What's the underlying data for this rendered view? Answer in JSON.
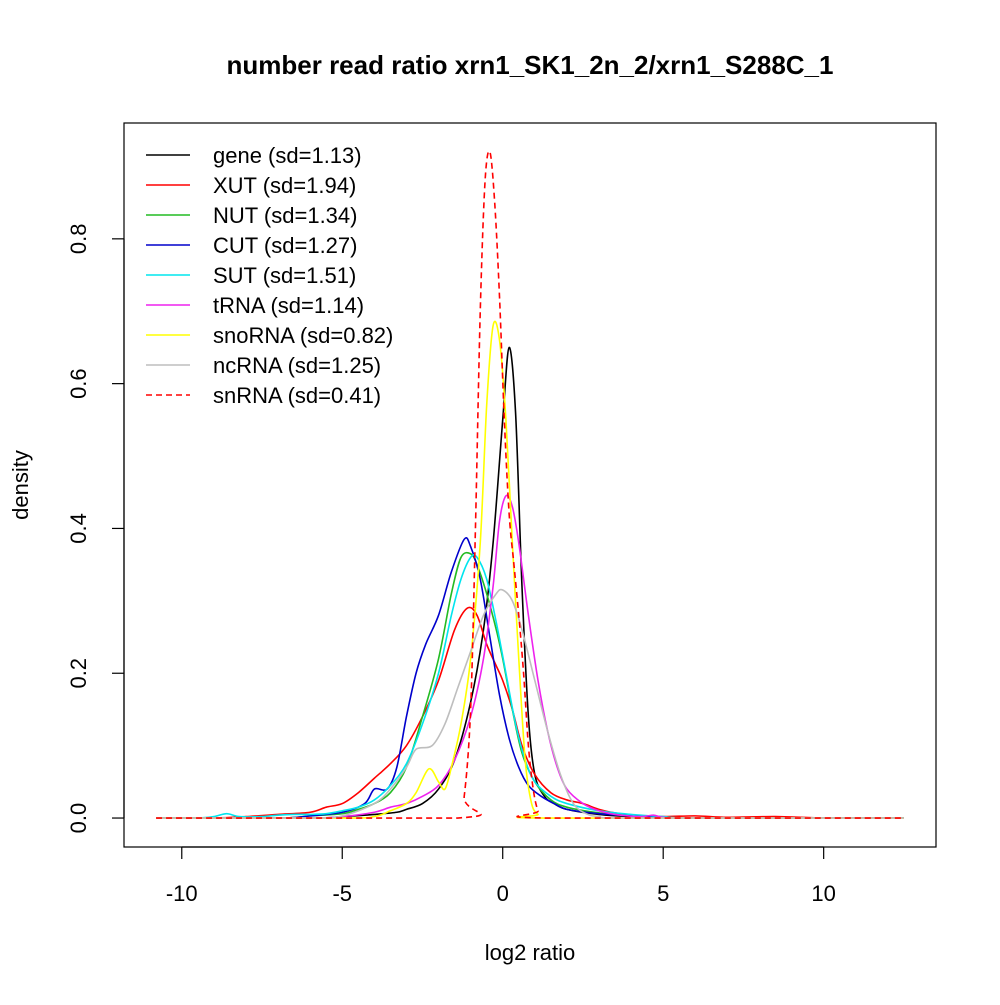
{
  "chart_data": {
    "type": "line",
    "title": "number read ratio xrn1_SK1_2n_2/xrn1_S288C_1",
    "xlabel": "log2 ratio",
    "ylabel": "density",
    "xlim": [
      -11.8,
      13.5
    ],
    "ylim": [
      -0.04,
      0.96
    ],
    "xticks": [
      -10,
      -5,
      0,
      5,
      10
    ],
    "yticks": [
      0.0,
      0.2,
      0.4,
      0.6,
      0.8
    ],
    "xtick_labels": [
      "-10",
      "-5",
      "0",
      "5",
      "10"
    ],
    "ytick_labels": [
      "0.0",
      "0.2",
      "0.4",
      "0.6",
      "0.8"
    ],
    "grid": false,
    "legend_position": "top-left",
    "series": [
      {
        "name": "gene (sd=1.13)",
        "color": "#000000",
        "dash": false,
        "points": [
          [
            -10.8,
            0.0
          ],
          [
            -6,
            0.0
          ],
          [
            -5,
            0.002
          ],
          [
            -4,
            0.005
          ],
          [
            -3.3,
            0.008
          ],
          [
            -3,
            0.012
          ],
          [
            -2.5,
            0.02
          ],
          [
            -2,
            0.04
          ],
          [
            -1.5,
            0.08
          ],
          [
            -1,
            0.16
          ],
          [
            -0.6,
            0.26
          ],
          [
            -0.3,
            0.38
          ],
          [
            0,
            0.55
          ],
          [
            0.2,
            0.65
          ],
          [
            0.4,
            0.56
          ],
          [
            0.6,
            0.32
          ],
          [
            0.8,
            0.14
          ],
          [
            1,
            0.06
          ],
          [
            1.3,
            0.03
          ],
          [
            1.6,
            0.02
          ],
          [
            2,
            0.012
          ],
          [
            3,
            0.005
          ],
          [
            4,
            0.002
          ],
          [
            5,
            0.001
          ],
          [
            6,
            0.0
          ],
          [
            12.5,
            0.0
          ]
        ]
      },
      {
        "name": "XUT (sd=1.94)",
        "color": "#ff0000",
        "dash": false,
        "points": [
          [
            -10.8,
            0.0
          ],
          [
            -9,
            0.0
          ],
          [
            -8,
            0.002
          ],
          [
            -7,
            0.005
          ],
          [
            -6,
            0.008
          ],
          [
            -5.5,
            0.015
          ],
          [
            -5,
            0.02
          ],
          [
            -4.5,
            0.035
          ],
          [
            -4,
            0.055
          ],
          [
            -3.5,
            0.075
          ],
          [
            -3,
            0.1
          ],
          [
            -2.5,
            0.14
          ],
          [
            -2,
            0.19
          ],
          [
            -1.5,
            0.26
          ],
          [
            -1.1,
            0.29
          ],
          [
            -0.8,
            0.28
          ],
          [
            -0.5,
            0.24
          ],
          [
            -0.2,
            0.21
          ],
          [
            0,
            0.19
          ],
          [
            0.3,
            0.15
          ],
          [
            0.6,
            0.1
          ],
          [
            1,
            0.06
          ],
          [
            1.5,
            0.035
          ],
          [
            2,
            0.025
          ],
          [
            2.5,
            0.02
          ],
          [
            3,
            0.012
          ],
          [
            3.5,
            0.007
          ],
          [
            4,
            0.004
          ],
          [
            5,
            0.002
          ],
          [
            6,
            0.003
          ],
          [
            7,
            0.001
          ],
          [
            8.5,
            0.002
          ],
          [
            10,
            0.0
          ],
          [
            12.5,
            0.0
          ]
        ]
      },
      {
        "name": "NUT (sd=1.34)",
        "color": "#22bb22",
        "dash": false,
        "points": [
          [
            -10.8,
            0.0
          ],
          [
            -7,
            0.0
          ],
          [
            -6,
            0.003
          ],
          [
            -5,
            0.006
          ],
          [
            -4.5,
            0.012
          ],
          [
            -4,
            0.02
          ],
          [
            -3.5,
            0.035
          ],
          [
            -3,
            0.07
          ],
          [
            -2.5,
            0.14
          ],
          [
            -2,
            0.22
          ],
          [
            -1.6,
            0.31
          ],
          [
            -1.3,
            0.36
          ],
          [
            -1,
            0.365
          ],
          [
            -0.8,
            0.35
          ],
          [
            -0.5,
            0.31
          ],
          [
            -0.2,
            0.26
          ],
          [
            0,
            0.22
          ],
          [
            0.3,
            0.15
          ],
          [
            0.6,
            0.09
          ],
          [
            1,
            0.05
          ],
          [
            1.5,
            0.025
          ],
          [
            2,
            0.015
          ],
          [
            3,
            0.007
          ],
          [
            4,
            0.003
          ],
          [
            5,
            0.001
          ],
          [
            6,
            0.0
          ],
          [
            12.5,
            0.0
          ]
        ]
      },
      {
        "name": "CUT (sd=1.27)",
        "color": "#0000cc",
        "dash": false,
        "points": [
          [
            -10.8,
            0.0
          ],
          [
            -7,
            0.0
          ],
          [
            -6,
            0.003
          ],
          [
            -5,
            0.008
          ],
          [
            -4.3,
            0.02
          ],
          [
            -4,
            0.04
          ],
          [
            -3.6,
            0.04
          ],
          [
            -3.3,
            0.07
          ],
          [
            -3,
            0.14
          ],
          [
            -2.7,
            0.2
          ],
          [
            -2.4,
            0.24
          ],
          [
            -2,
            0.28
          ],
          [
            -1.6,
            0.34
          ],
          [
            -1.2,
            0.385
          ],
          [
            -1,
            0.375
          ],
          [
            -0.7,
            0.33
          ],
          [
            -0.4,
            0.25
          ],
          [
            -0.1,
            0.17
          ],
          [
            0.2,
            0.11
          ],
          [
            0.5,
            0.07
          ],
          [
            0.8,
            0.045
          ],
          [
            1.2,
            0.03
          ],
          [
            1.6,
            0.02
          ],
          [
            2,
            0.012
          ],
          [
            3,
            0.006
          ],
          [
            4,
            0.003
          ],
          [
            5,
            0.001
          ],
          [
            6,
            0.0
          ],
          [
            12.5,
            0.0
          ]
        ]
      },
      {
        "name": "SUT (sd=1.51)",
        "color": "#00e5ee",
        "dash": false,
        "points": [
          [
            -10.8,
            0.0
          ],
          [
            -9.5,
            0.0
          ],
          [
            -9,
            0.002
          ],
          [
            -8.6,
            0.006
          ],
          [
            -8.2,
            0.002
          ],
          [
            -7.5,
            0.002
          ],
          [
            -7,
            0.004
          ],
          [
            -6.5,
            0.005
          ],
          [
            -6,
            0.005
          ],
          [
            -5.5,
            0.006
          ],
          [
            -5,
            0.01
          ],
          [
            -4.5,
            0.015
          ],
          [
            -4,
            0.025
          ],
          [
            -3.5,
            0.045
          ],
          [
            -3,
            0.075
          ],
          [
            -2.5,
            0.13
          ],
          [
            -2,
            0.2
          ],
          [
            -1.6,
            0.28
          ],
          [
            -1.3,
            0.33
          ],
          [
            -1,
            0.36
          ],
          [
            -0.8,
            0.36
          ],
          [
            -0.5,
            0.33
          ],
          [
            -0.2,
            0.27
          ],
          [
            0.1,
            0.2
          ],
          [
            0.4,
            0.13
          ],
          [
            0.7,
            0.08
          ],
          [
            1,
            0.05
          ],
          [
            1.5,
            0.03
          ],
          [
            2,
            0.02
          ],
          [
            3,
            0.01
          ],
          [
            4,
            0.005
          ],
          [
            5,
            0.002
          ],
          [
            6,
            0.0
          ],
          [
            12.5,
            0.0
          ]
        ]
      },
      {
        "name": "tRNA (sd=1.14)",
        "color": "#ee22ee",
        "dash": false,
        "points": [
          [
            -10.8,
            0.0
          ],
          [
            -6,
            0.0
          ],
          [
            -5,
            0.002
          ],
          [
            -4,
            0.008
          ],
          [
            -3.5,
            0.015
          ],
          [
            -3,
            0.02
          ],
          [
            -2.5,
            0.03
          ],
          [
            -2,
            0.045
          ],
          [
            -1.5,
            0.08
          ],
          [
            -1,
            0.14
          ],
          [
            -0.6,
            0.22
          ],
          [
            -0.3,
            0.32
          ],
          [
            -0.1,
            0.41
          ],
          [
            0.1,
            0.445
          ],
          [
            0.3,
            0.43
          ],
          [
            0.5,
            0.38
          ],
          [
            0.8,
            0.28
          ],
          [
            1.1,
            0.19
          ],
          [
            1.4,
            0.12
          ],
          [
            1.7,
            0.07
          ],
          [
            2,
            0.04
          ],
          [
            2.5,
            0.02
          ],
          [
            3,
            0.01
          ],
          [
            3.5,
            0.005
          ],
          [
            4.3,
            0.002
          ],
          [
            4.7,
            0.004
          ],
          [
            5,
            0.001
          ],
          [
            6,
            0.0
          ],
          [
            12.5,
            0.0
          ]
        ]
      },
      {
        "name": "snoRNA (sd=0.82)",
        "color": "#ffff00",
        "dash": false,
        "points": [
          [
            -10.8,
            0.0
          ],
          [
            -5,
            0.0
          ],
          [
            -4,
            0.002
          ],
          [
            -3.5,
            0.01
          ],
          [
            -3,
            0.02
          ],
          [
            -2.7,
            0.035
          ],
          [
            -2.3,
            0.068
          ],
          [
            -2,
            0.05
          ],
          [
            -1.8,
            0.04
          ],
          [
            -1.6,
            0.07
          ],
          [
            -1.3,
            0.13
          ],
          [
            -1,
            0.22
          ],
          [
            -0.7,
            0.38
          ],
          [
            -0.5,
            0.57
          ],
          [
            -0.3,
            0.68
          ],
          [
            -0.1,
            0.66
          ],
          [
            0.1,
            0.55
          ],
          [
            0.3,
            0.38
          ],
          [
            0.5,
            0.22
          ],
          [
            0.7,
            0.08
          ],
          [
            0.9,
            0.02
          ],
          [
            1.1,
            0.005
          ],
          [
            1.3,
            0.0
          ],
          [
            12.5,
            0.0
          ]
        ]
      },
      {
        "name": "ncRNA (sd=1.25)",
        "color": "#bebebe",
        "dash": false,
        "points": [
          [
            -10.8,
            0.0
          ],
          [
            -6,
            0.0
          ],
          [
            -5,
            0.003
          ],
          [
            -4,
            0.02
          ],
          [
            -3.5,
            0.04
          ],
          [
            -3,
            0.07
          ],
          [
            -2.7,
            0.095
          ],
          [
            -2.2,
            0.1
          ],
          [
            -1.8,
            0.13
          ],
          [
            -1.4,
            0.18
          ],
          [
            -1,
            0.23
          ],
          [
            -0.6,
            0.28
          ],
          [
            -0.2,
            0.31
          ],
          [
            0,
            0.315
          ],
          [
            0.3,
            0.3
          ],
          [
            0.6,
            0.26
          ],
          [
            1,
            0.19
          ],
          [
            1.4,
            0.12
          ],
          [
            1.8,
            0.06
          ],
          [
            2.2,
            0.02
          ],
          [
            2.6,
            0.006
          ],
          [
            3,
            0.002
          ],
          [
            4,
            0.0
          ],
          [
            12.5,
            0.0
          ]
        ]
      },
      {
        "name": "snRNA (sd=0.41)",
        "color": "#ff0000",
        "dash": true,
        "points": [
          [
            -10.8,
            0.0
          ],
          [
            -1.4,
            0.0
          ],
          [
            -1.2,
            0.03
          ],
          [
            -1,
            0.15
          ],
          [
            -0.85,
            0.4
          ],
          [
            -0.7,
            0.7
          ],
          [
            -0.55,
            0.88
          ],
          [
            -0.4,
            0.92
          ],
          [
            -0.25,
            0.85
          ],
          [
            -0.1,
            0.72
          ],
          [
            0.05,
            0.55
          ],
          [
            0.2,
            0.42
          ],
          [
            0.35,
            0.35
          ],
          [
            0.5,
            0.28
          ],
          [
            0.65,
            0.2
          ],
          [
            0.8,
            0.1
          ],
          [
            0.95,
            0.04
          ],
          [
            1.1,
            0.01
          ],
          [
            1.3,
            0.0
          ],
          [
            12.5,
            0.0
          ]
        ]
      }
    ]
  }
}
